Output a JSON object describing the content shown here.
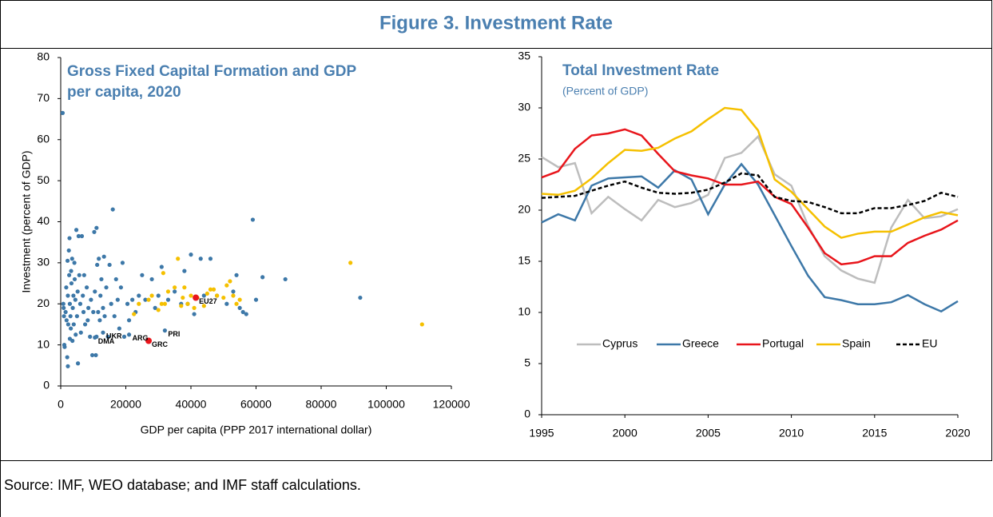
{
  "title": "Figure 3. Investment Rate",
  "source": "Source: IMF, WEO database; and IMF staff calculations.",
  "chart_data": [
    {
      "type": "scatter",
      "title": [
        "Gross Fixed Capital Formation and GDP",
        "per capita, 2020"
      ],
      "xlabel": "GDP per capita (PPP 2017 international dollar)",
      "ylabel": "Investment (percent of GDP)",
      "xlim": [
        0,
        120000
      ],
      "xticks": [
        0,
        20000,
        40000,
        60000,
        80000,
        100000,
        120000
      ],
      "ylim": [
        0,
        80
      ],
      "yticks": [
        0,
        10,
        20,
        30,
        40,
        50,
        60,
        70,
        80
      ],
      "series": [
        {
          "color": "#3d78a8",
          "x": [
            600,
            800,
            900,
            1000,
            1100,
            1200,
            1500,
            1700,
            1800,
            2000,
            2100,
            2200,
            2300,
            2500,
            2600,
            2700,
            2800,
            3000,
            3100,
            3200,
            3300,
            3500,
            3600,
            3700,
            3900,
            4000,
            4200,
            4300,
            4500,
            4600,
            4800,
            5000,
            5200,
            5300,
            5500,
            5700,
            6000,
            6200,
            6500,
            6800,
            7000,
            7200,
            7500,
            8000,
            8300,
            8500,
            9000,
            9300,
            9700,
            10000,
            10300,
            10500,
            10800,
            11000,
            11200,
            11500,
            11700,
            12000,
            12200,
            12500,
            13000,
            13300,
            13500,
            14000,
            14500,
            15000,
            15500,
            16000,
            16500,
            17000,
            17500,
            18000,
            18500,
            19000,
            19500,
            20500,
            21000,
            22000,
            23000,
            24000,
            25000,
            26000,
            28000,
            29000,
            30000,
            31000,
            32000,
            33000,
            35000,
            37000,
            38000,
            39000,
            40000,
            41000,
            43000,
            44000,
            46000,
            48000,
            51000,
            53000,
            54000,
            55000,
            56000,
            57000,
            59000,
            60000,
            62000,
            69000,
            92000,
            11000,
            2200,
            2800,
            13000,
            10500,
            21000
          ],
          "values": [
            66.5,
            20,
            19,
            17,
            10,
            9.5,
            18,
            24,
            16,
            7,
            30.5,
            22,
            15,
            33,
            27,
            36,
            20,
            17,
            14,
            28,
            25,
            31,
            11,
            19,
            22,
            15,
            30,
            26,
            21,
            12.5,
            38,
            17,
            23,
            5.5,
            36.5,
            27,
            20,
            13,
            36.5,
            22,
            18,
            27,
            15,
            24,
            16,
            19,
            12,
            21,
            7.5,
            18,
            37.5,
            23,
            7.5,
            38.5,
            29.5,
            18,
            31,
            16,
            22,
            26,
            19,
            31.5,
            17,
            24,
            12,
            29.5,
            20,
            43,
            17,
            26,
            21,
            14,
            24,
            30,
            12,
            20,
            16,
            21,
            18,
            22,
            27,
            21,
            26,
            19,
            22,
            29,
            13.5,
            21,
            23,
            20,
            28,
            20,
            32,
            17.5,
            31,
            22,
            31,
            22,
            20,
            23,
            27,
            19,
            18,
            17.5,
            40.5,
            21,
            26.5,
            26,
            21.5,
            12,
            4.8,
            11.5,
            13,
            11.8,
            12.5
          ]
        },
        {
          "color": "#f5c000",
          "x": [
            22500,
            24000,
            27000,
            28000,
            30000,
            31000,
            31500,
            32000,
            33000,
            35000,
            36000,
            37000,
            37500,
            38000,
            39000,
            40000,
            41000,
            42000,
            44000,
            45000,
            46000,
            47000,
            48000,
            50000,
            51000,
            52000,
            53000,
            54000,
            55000,
            89000,
            111000
          ],
          "values": [
            17.5,
            20,
            21,
            22,
            18.5,
            20,
            27.5,
            20,
            23,
            24,
            31,
            19.5,
            21.5,
            24,
            20,
            22,
            19,
            21.5,
            19.5,
            22.5,
            23.5,
            23.5,
            22,
            21.5,
            24.5,
            25.5,
            22,
            20,
            21,
            30,
            15
          ]
        },
        {
          "color": "#e8151b",
          "x": [
            41500,
            27000
          ],
          "values": [
            21.5,
            11
          ]
        }
      ],
      "annotations": [
        {
          "text": "UKR",
          "x": 13000,
          "y": 13
        },
        {
          "text": "DMA",
          "x": 10500,
          "y": 11.8
        },
        {
          "text": "ARG",
          "x": 21000,
          "y": 12.5
        },
        {
          "text": "GRC",
          "x": 27000,
          "y": 11
        },
        {
          "text": "PRI",
          "x": 32000,
          "y": 13.5
        },
        {
          "text": "EU27",
          "x": 41500,
          "y": 21.5
        }
      ]
    },
    {
      "type": "line",
      "title": "Total Investment Rate",
      "subtitle": "(Percent of GDP)",
      "x": [
        1995,
        1996,
        1997,
        1998,
        1999,
        2000,
        2001,
        2002,
        2003,
        2004,
        2005,
        2006,
        2007,
        2008,
        2009,
        2010,
        2011,
        2012,
        2013,
        2014,
        2015,
        2016,
        2017,
        2018,
        2019,
        2020
      ],
      "xlim": [
        1995,
        2020
      ],
      "xticks": [
        1995,
        2000,
        2005,
        2010,
        2015,
        2020
      ],
      "ylim": [
        0,
        35
      ],
      "yticks": [
        0,
        5,
        10,
        15,
        20,
        25,
        30,
        35
      ],
      "series": [
        {
          "name": "Cyprus",
          "color": "#bdbdbd",
          "values": [
            25.2,
            24.2,
            24.6,
            19.7,
            21.3,
            20.1,
            19.0,
            21.0,
            20.3,
            20.7,
            21.5,
            25.1,
            25.6,
            27.2,
            23.5,
            22.4,
            18.5,
            15.5,
            14.1,
            13.3,
            12.9,
            18.3,
            21.0,
            19.2,
            19.4,
            20.1
          ]
        },
        {
          "name": "Greece",
          "color": "#3d78a8",
          "values": [
            18.8,
            19.6,
            19.0,
            22.4,
            23.1,
            23.2,
            23.3,
            22.2,
            23.9,
            23.0,
            19.6,
            22.5,
            24.5,
            22.5,
            19.5,
            16.5,
            13.6,
            11.5,
            11.2,
            10.8,
            10.8,
            11.0,
            11.7,
            10.8,
            10.1,
            11.1
          ]
        },
        {
          "name": "Portugal",
          "color": "#e8151b",
          "values": [
            23.2,
            23.8,
            26.0,
            27.3,
            27.5,
            27.9,
            27.3,
            25.5,
            23.8,
            23.4,
            23.1,
            22.5,
            22.5,
            22.8,
            21.3,
            20.6,
            18.3,
            15.8,
            14.7,
            14.9,
            15.5,
            15.5,
            16.8,
            17.5,
            18.1,
            19.0
          ]
        },
        {
          "name": "Spain",
          "color": "#f5c000",
          "values": [
            21.6,
            21.5,
            21.9,
            23.1,
            24.6,
            25.9,
            25.8,
            26.1,
            27.0,
            27.7,
            28.9,
            30.0,
            29.8,
            27.8,
            23.0,
            21.8,
            20.1,
            18.4,
            17.3,
            17.7,
            17.9,
            17.9,
            18.6,
            19.3,
            19.8,
            19.5
          ]
        },
        {
          "name": "EU",
          "color": "#000000",
          "dashed": true,
          "values": [
            21.2,
            21.3,
            21.4,
            21.9,
            22.4,
            22.8,
            22.2,
            21.7,
            21.6,
            21.7,
            22.0,
            22.7,
            23.6,
            23.4,
            21.3,
            20.9,
            20.8,
            20.3,
            19.7,
            19.7,
            20.2,
            20.2,
            20.5,
            20.9,
            21.7,
            21.3
          ]
        }
      ]
    }
  ]
}
